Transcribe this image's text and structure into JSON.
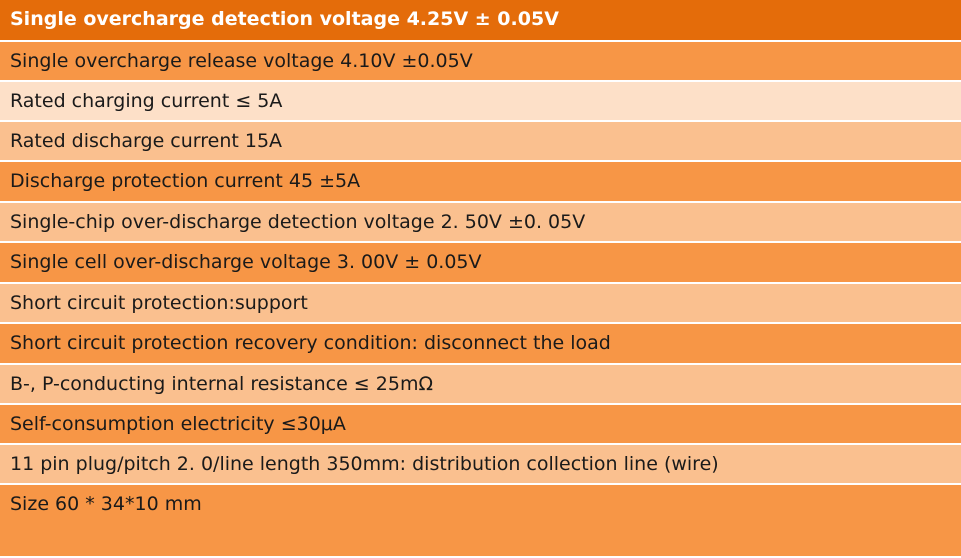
{
  "table": {
    "header": "Single overcharge detection voltage 4.25V ± 0.05V",
    "rows": [
      "Single overcharge release voltage 4.10V ±0.05V",
      "Rated charging current ≤ 5A",
      "Rated discharge current 15A",
      "Discharge protection current 45 ±5A",
      "Single-chip over-discharge detection voltage 2. 50V ±0. 05V",
      "Single cell over-discharge voltage 3. 00V ± 0.05V",
      "Short circuit protection:support",
      "Short circuit protection recovery condition: disconnect the load",
      "B-, P-conducting internal resistance ≤ 25mΩ",
      "Self-consumption electricity ≤30μA",
      "11 pin plug/pitch 2. 0/line length 350mm: distribution collection line (wire)",
      "Size   60 * 34*10 mm"
    ]
  }
}
